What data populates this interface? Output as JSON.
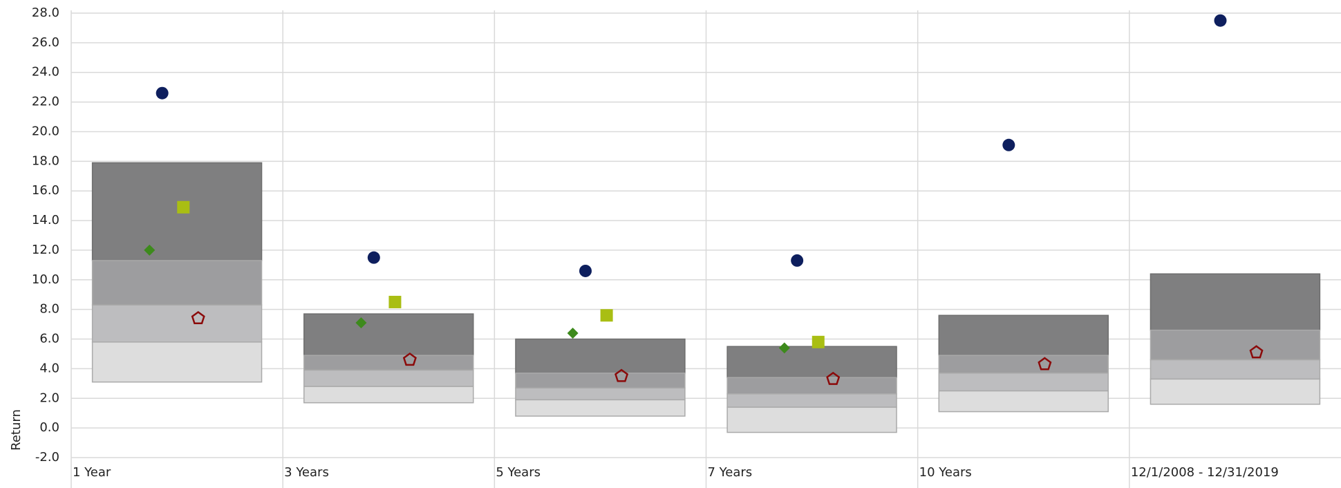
{
  "chart_data": {
    "type": "floating-box-scatter",
    "y_label": "Return",
    "categories": [
      "1 Year",
      "3 Years",
      "5 Years",
      "7 Years",
      "10 Years",
      "12/1/2008 - 12/31/2019"
    ],
    "ylim": [
      -2,
      28
    ],
    "yticks": [
      {
        "value": -2,
        "label": "-2.0"
      },
      {
        "value": 0,
        "label": "0.0"
      },
      {
        "value": 2,
        "label": "2.0"
      },
      {
        "value": 4,
        "label": "4.0"
      },
      {
        "value": 6,
        "label": "6.0"
      },
      {
        "value": 8,
        "label": "8.0"
      },
      {
        "value": 10,
        "label": "10.0"
      },
      {
        "value": 12,
        "label": "12.0"
      },
      {
        "value": 14,
        "label": "14.0"
      },
      {
        "value": 16,
        "label": "16.0"
      },
      {
        "value": 18,
        "label": "18.0"
      },
      {
        "value": 20,
        "label": "20.0"
      },
      {
        "value": 22,
        "label": "22.0"
      },
      {
        "value": 24,
        "label": "24.0"
      },
      {
        "value": 26,
        "label": "26.0"
      },
      {
        "value": 28,
        "label": "28.0"
      }
    ],
    "grid": true,
    "boxes": {
      "colors": [
        "#7f7f80",
        "#9d9d9f",
        "#bdbdbf",
        "#dddddd"
      ],
      "values": [
        [
          17.9,
          11.3,
          8.3,
          5.8,
          3.1
        ],
        [
          7.7,
          4.9,
          3.9,
          2.8,
          1.7
        ],
        [
          6.0,
          3.7,
          2.7,
          1.9,
          0.8
        ],
        [
          5.5,
          3.4,
          2.3,
          1.4,
          -0.3
        ],
        [
          7.6,
          4.9,
          3.7,
          2.5,
          1.1
        ],
        [
          10.4,
          6.6,
          4.6,
          3.3,
          1.6
        ]
      ]
    },
    "series": [
      {
        "marker": "diamond",
        "color": "#3d8a1c",
        "values": [
          12.0,
          7.1,
          6.4,
          5.4,
          null,
          null
        ]
      },
      {
        "marker": "circle",
        "color": "#0e1f5e",
        "values": [
          22.6,
          11.5,
          10.6,
          11.3,
          19.1,
          27.5
        ]
      },
      {
        "marker": "square",
        "color": "#a9be13",
        "values": [
          14.9,
          8.5,
          7.6,
          5.8,
          null,
          null
        ]
      },
      {
        "marker": "pentagon",
        "color": "#8b0a0a",
        "values": [
          7.4,
          4.6,
          3.5,
          3.3,
          4.3,
          5.1
        ]
      }
    ]
  }
}
